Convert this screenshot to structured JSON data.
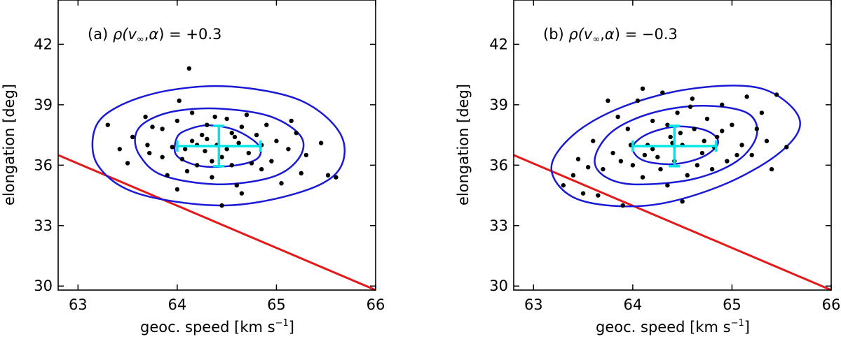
{
  "chart_data": [
    {
      "type": "scatter",
      "panel": "a",
      "annotation": {
        "prefix": "(a) ",
        "rho": "ρ(v",
        "sub": "∞",
        "mid": ",",
        "alpha": "α",
        "rest": ") = +0.3"
      },
      "xlabel": {
        "text": "geoc. speed [km s",
        "sup": "−1",
        "close": "]"
      },
      "ylabel": "elongation [deg]",
      "xlim": [
        62.8,
        66.0
      ],
      "ylim": [
        29.8,
        44.2
      ],
      "xticks": [
        63,
        64,
        65,
        66
      ],
      "yticks": [
        30,
        33,
        36,
        39,
        42
      ],
      "center": {
        "x": 64.42,
        "y": 36.95
      },
      "errorbar": {
        "dx": 0.42,
        "dy": 1.0,
        "color": "#00e5e5"
      },
      "ellipse_color": "#1a1ad6",
      "ellipses": [
        {
          "level": 1,
          "x": [
            [
              64.0,
              37.4
            ],
            [
              64.1,
              37.75
            ],
            [
              64.3,
              37.98
            ],
            [
              64.55,
              37.8
            ],
            [
              64.75,
              37.3
            ],
            [
              64.84,
              36.8
            ],
            [
              64.8,
              36.3
            ],
            [
              64.6,
              36.0
            ],
            [
              64.3,
              35.92
            ],
            [
              64.1,
              36.15
            ],
            [
              63.98,
              36.6
            ]
          ]
        },
        {
          "level": 2,
          "x": [
            [
              63.58,
              37.5
            ],
            [
              63.7,
              38.2
            ],
            [
              64.0,
              38.7
            ],
            [
              64.45,
              38.8
            ],
            [
              64.95,
              38.4
            ],
            [
              65.25,
              37.4
            ],
            [
              65.22,
              36.3
            ],
            [
              64.95,
              35.4
            ],
            [
              64.4,
              35.05
            ],
            [
              63.85,
              35.5
            ],
            [
              63.62,
              36.5
            ]
          ]
        },
        {
          "level": 3,
          "x": [
            [
              63.17,
              37.8
            ],
            [
              63.4,
              38.9
            ],
            [
              63.9,
              39.7
            ],
            [
              64.55,
              39.9
            ],
            [
              65.25,
              39.2
            ],
            [
              65.65,
              37.5
            ],
            [
              65.62,
              35.7
            ],
            [
              65.2,
              34.6
            ],
            [
              64.45,
              34.0
            ],
            [
              63.6,
              34.6
            ],
            [
              63.2,
              36.0
            ]
          ]
        }
      ],
      "red_line": {
        "color": "#e51919",
        "points": [
          [
            62.8,
            36.5
          ],
          [
            66.0,
            29.8
          ]
        ]
      },
      "points": [
        [
          63.3,
          38.0
        ],
        [
          63.55,
          37.4
        ],
        [
          63.42,
          36.8
        ],
        [
          63.5,
          36.1
        ],
        [
          63.68,
          38.4
        ],
        [
          63.75,
          37.9
        ],
        [
          63.7,
          37.0
        ],
        [
          63.72,
          36.6
        ],
        [
          63.85,
          37.8
        ],
        [
          63.9,
          35.5
        ],
        [
          64.05,
          36.3
        ],
        [
          64.0,
          38.2
        ],
        [
          64.1,
          35.7
        ],
        [
          64.15,
          37.2
        ],
        [
          64.15,
          38.6
        ],
        [
          64.2,
          36.0
        ],
        [
          64.25,
          37.5
        ],
        [
          64.28,
          36.7
        ],
        [
          64.3,
          38.0
        ],
        [
          64.35,
          35.4
        ],
        [
          64.4,
          37.0
        ],
        [
          64.45,
          36.4
        ],
        [
          64.5,
          38.3
        ],
        [
          64.55,
          37.6
        ],
        [
          64.55,
          36.0
        ],
        [
          64.6,
          35.0
        ],
        [
          64.62,
          37.1
        ],
        [
          64.7,
          38.5
        ],
        [
          64.72,
          36.6
        ],
        [
          64.8,
          37.5
        ],
        [
          64.85,
          35.8
        ],
        [
          64.9,
          38.0
        ],
        [
          64.95,
          36.2
        ],
        [
          65.0,
          37.2
        ],
        [
          65.05,
          35.1
        ],
        [
          65.12,
          36.8
        ],
        [
          65.2,
          37.6
        ],
        [
          65.25,
          35.6
        ],
        [
          65.3,
          36.5
        ],
        [
          65.45,
          37.1
        ],
        [
          65.52,
          35.5
        ],
        [
          65.6,
          35.4
        ],
        [
          64.12,
          40.8
        ],
        [
          64.02,
          39.2
        ],
        [
          64.45,
          34.0
        ],
        [
          64.65,
          34.6
        ],
        [
          64.0,
          34.8
        ],
        [
          63.95,
          36.9
        ],
        [
          64.35,
          36.2
        ],
        [
          64.65,
          37.9
        ],
        [
          64.2,
          37.0
        ],
        [
          64.5,
          36.8
        ],
        [
          64.75,
          36.1
        ],
        [
          64.3,
          37.3
        ],
        [
          64.58,
          37.4
        ],
        [
          64.08,
          36.8
        ],
        [
          64.85,
          37.0
        ],
        [
          64.38,
          38.4
        ],
        [
          65.15,
          38.2
        ],
        [
          63.85,
          36.4
        ]
      ]
    },
    {
      "type": "scatter",
      "panel": "b",
      "annotation": {
        "prefix": "(b) ",
        "rho": "ρ(v",
        "sub": "∞",
        "mid": ",",
        "alpha": "α",
        "rest": ") = −0.3"
      },
      "xlabel": {
        "text": "geoc. speed [km s",
        "sup": "−1",
        "close": "]"
      },
      "ylabel": "elongation [deg]",
      "xlim": [
        62.8,
        66.0
      ],
      "ylim": [
        29.8,
        44.2
      ],
      "xticks": [
        63,
        64,
        65,
        66
      ],
      "yticks": [
        30,
        33,
        36,
        39,
        42
      ],
      "center": {
        "x": 64.42,
        "y": 36.95
      },
      "errorbar": {
        "dx": 0.42,
        "dy": 1.0,
        "color": "#00e5e5"
      },
      "ellipse_color": "#1a1ad6",
      "ellipses": [
        {
          "level": 1,
          "x": [
            [
              64.0,
              36.9
            ],
            [
              64.15,
              37.55
            ],
            [
              64.45,
              37.92
            ],
            [
              64.75,
              37.7
            ],
            [
              64.86,
              37.1
            ],
            [
              64.7,
              36.4
            ],
            [
              64.4,
              36.05
            ],
            [
              64.1,
              36.25
            ]
          ]
        },
        {
          "level": 2,
          "x": [
            [
              63.62,
              36.4
            ],
            [
              63.8,
              37.7
            ],
            [
              64.2,
              38.6
            ],
            [
              64.7,
              38.95
            ],
            [
              65.15,
              38.6
            ],
            [
              65.25,
              37.5
            ],
            [
              65.05,
              36.2
            ],
            [
              64.6,
              35.3
            ],
            [
              64.0,
              35.05
            ],
            [
              63.7,
              35.5
            ]
          ]
        },
        {
          "level": 3,
          "x": [
            [
              63.18,
              35.8
            ],
            [
              63.4,
              37.5
            ],
            [
              63.9,
              38.9
            ],
            [
              64.6,
              39.8
            ],
            [
              65.3,
              39.8
            ],
            [
              65.68,
              38.3
            ],
            [
              65.5,
              36.7
            ],
            [
              64.9,
              35.0
            ],
            [
              64.15,
              34.0
            ],
            [
              63.45,
              34.3
            ]
          ]
        }
      ],
      "red_line": {
        "color": "#e51919",
        "points": [
          [
            62.8,
            36.5
          ],
          [
            66.0,
            29.8
          ]
        ]
      },
      "points": [
        [
          63.3,
          35.0
        ],
        [
          63.4,
          35.5
        ],
        [
          63.5,
          34.6
        ],
        [
          63.65,
          34.5
        ],
        [
          63.45,
          36.3
        ],
        [
          63.6,
          37.2
        ],
        [
          63.7,
          35.8
        ],
        [
          63.8,
          36.6
        ],
        [
          63.85,
          38.4
        ],
        [
          63.9,
          34.0
        ],
        [
          63.95,
          37.8
        ],
        [
          64.0,
          36.0
        ],
        [
          64.05,
          39.2
        ],
        [
          64.1,
          35.4
        ],
        [
          64.15,
          37.0
        ],
        [
          64.2,
          38.2
        ],
        [
          64.25,
          36.4
        ],
        [
          64.3,
          39.6
        ],
        [
          64.35,
          35.0
        ],
        [
          64.38,
          37.4
        ],
        [
          64.42,
          36.2
        ],
        [
          64.45,
          38.6
        ],
        [
          64.5,
          37.0
        ],
        [
          64.55,
          35.5
        ],
        [
          64.6,
          39.3
        ],
        [
          64.62,
          37.8
        ],
        [
          64.7,
          36.6
        ],
        [
          64.75,
          38.3
        ],
        [
          64.8,
          35.8
        ],
        [
          64.85,
          37.4
        ],
        [
          64.9,
          39.0
        ],
        [
          64.95,
          36.2
        ],
        [
          65.0,
          38.0
        ],
        [
          65.1,
          37.0
        ],
        [
          65.15,
          39.4
        ],
        [
          65.2,
          36.5
        ],
        [
          65.3,
          38.6
        ],
        [
          65.35,
          37.2
        ],
        [
          65.4,
          35.8
        ],
        [
          65.45,
          39.5
        ],
        [
          65.55,
          36.9
        ],
        [
          63.75,
          39.2
        ],
        [
          64.1,
          39.8
        ],
        [
          64.5,
          34.2
        ],
        [
          64.35,
          38.0
        ],
        [
          64.65,
          36.0
        ],
        [
          64.2,
          36.8
        ],
        [
          64.48,
          37.6
        ],
        [
          64.9,
          37.7
        ],
        [
          63.98,
          37.0
        ],
        [
          64.72,
          37.2
        ],
        [
          64.28,
          35.8
        ],
        [
          65.05,
          36.5
        ],
        [
          64.58,
          38.9
        ],
        [
          63.55,
          35.9
        ],
        [
          65.25,
          37.8
        ],
        [
          64.12,
          36.5
        ],
        [
          64.82,
          36.9
        ],
        [
          64.4,
          37.1
        ],
        [
          63.88,
          36.2
        ]
      ]
    }
  ]
}
